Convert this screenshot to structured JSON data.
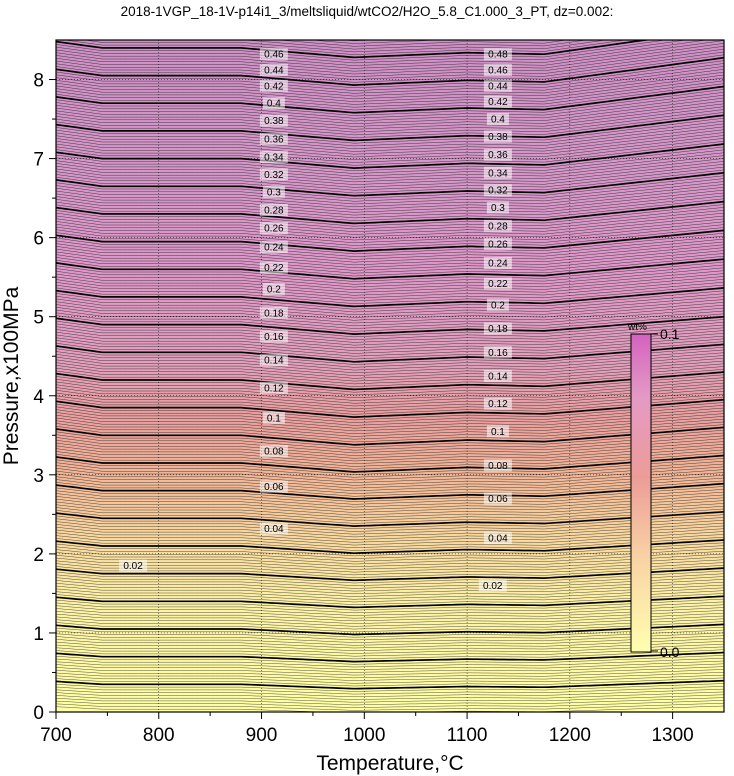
{
  "chart_data": {
    "type": "contour",
    "title": "2018-1VGP_18-1V-p14i1_3/meltsliquid/wtCO2/H2O_5.8_C1.000_3_PT, dz=0.002:",
    "xlabel": "Temperature,°C",
    "ylabel": "Pressure,x100MPa",
    "xlim": [
      700,
      1350
    ],
    "ylim": [
      0,
      8.5
    ],
    "x_ticks": [
      "700",
      "800",
      "900",
      "1000",
      "1100",
      "1200",
      "1300"
    ],
    "y_ticks": [
      "0",
      "1",
      "2",
      "3",
      "4",
      "5",
      "6",
      "7",
      "8"
    ],
    "grid": true,
    "contour_interval": 0.002,
    "colorbar": {
      "unit": "wt%",
      "min_label": "0.0",
      "max_label": "0.1",
      "colors": [
        "#ffffb0",
        "#f5c8a0",
        "#e8a090",
        "#e8a0c0",
        "#d870c0"
      ]
    },
    "contour_labels": [
      {
        "text": "0.02",
        "T": 775,
        "P": 1.85
      },
      {
        "text": "0.02",
        "T": 1125,
        "P": 1.6
      },
      {
        "text": "0.04",
        "T": 912,
        "P": 2.32
      },
      {
        "text": "0.04",
        "T": 1130,
        "P": 2.2
      },
      {
        "text": "0.06",
        "T": 912,
        "P": 2.85
      },
      {
        "text": "0.06",
        "T": 1130,
        "P": 2.7
      },
      {
        "text": "0.08",
        "T": 912,
        "P": 3.3
      },
      {
        "text": "0.08",
        "T": 1130,
        "P": 3.12
      },
      {
        "text": "0.1",
        "T": 912,
        "P": 3.72
      },
      {
        "text": "0.1",
        "T": 1130,
        "P": 3.55
      },
      {
        "text": "0.12",
        "T": 912,
        "P": 4.1
      },
      {
        "text": "0.12",
        "T": 1130,
        "P": 3.9
      },
      {
        "text": "0.14",
        "T": 912,
        "P": 4.45
      },
      {
        "text": "0.14",
        "T": 1130,
        "P": 4.25
      },
      {
        "text": "0.16",
        "T": 912,
        "P": 4.75
      },
      {
        "text": "0.16",
        "T": 1130,
        "P": 4.55
      },
      {
        "text": "0.18",
        "T": 912,
        "P": 5.05
      },
      {
        "text": "0.18",
        "T": 1130,
        "P": 4.85
      },
      {
        "text": "0.2",
        "T": 912,
        "P": 5.35
      },
      {
        "text": "0.2",
        "T": 1130,
        "P": 5.15
      },
      {
        "text": "0.22",
        "T": 912,
        "P": 5.62
      },
      {
        "text": "0.22",
        "T": 1130,
        "P": 5.42
      },
      {
        "text": "0.24",
        "T": 912,
        "P": 5.88
      },
      {
        "text": "0.24",
        "T": 1130,
        "P": 5.68
      },
      {
        "text": "0.26",
        "T": 912,
        "P": 6.12
      },
      {
        "text": "0.26",
        "T": 1130,
        "P": 5.92
      },
      {
        "text": "0.28",
        "T": 912,
        "P": 6.35
      },
      {
        "text": "0.28",
        "T": 1130,
        "P": 6.15
      },
      {
        "text": "0.3",
        "T": 912,
        "P": 6.58
      },
      {
        "text": "0.3",
        "T": 1130,
        "P": 6.38
      },
      {
        "text": "0.32",
        "T": 912,
        "P": 6.8
      },
      {
        "text": "0.32",
        "T": 1130,
        "P": 6.6
      },
      {
        "text": "0.34",
        "T": 912,
        "P": 7.02
      },
      {
        "text": "0.34",
        "T": 1130,
        "P": 6.82
      },
      {
        "text": "0.36",
        "T": 912,
        "P": 7.25
      },
      {
        "text": "0.36",
        "T": 1130,
        "P": 7.05
      },
      {
        "text": "0.38",
        "T": 912,
        "P": 7.48
      },
      {
        "text": "0.38",
        "T": 1130,
        "P": 7.28
      },
      {
        "text": "0.4",
        "T": 912,
        "P": 7.7
      },
      {
        "text": "0.4",
        "T": 1130,
        "P": 7.5
      },
      {
        "text": "0.42",
        "T": 912,
        "P": 7.92
      },
      {
        "text": "0.42",
        "T": 1130,
        "P": 7.72
      },
      {
        "text": "0.44",
        "T": 912,
        "P": 8.12
      },
      {
        "text": "0.44",
        "T": 1130,
        "P": 7.92
      },
      {
        "text": "0.46",
        "T": 912,
        "P": 8.32
      },
      {
        "text": "0.46",
        "T": 1130,
        "P": 8.12
      },
      {
        "text": "0.48",
        "T": 1130,
        "P": 8.32
      }
    ]
  }
}
